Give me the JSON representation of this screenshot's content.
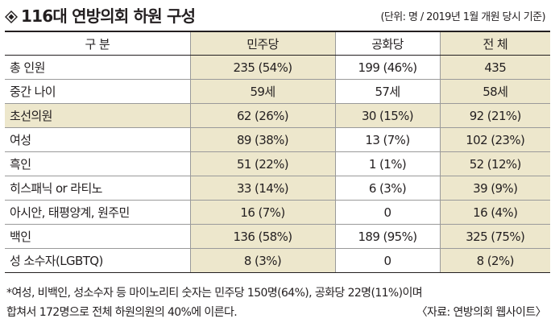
{
  "title": "116대 연방의회  하원 구성",
  "unit_note": "(단위: 명 / 2019년 1월 개원 당시 기준)",
  "table": {
    "headers": [
      "구 분",
      "민주당",
      "공화당",
      "전 체"
    ],
    "rows": [
      {
        "label": "총 인원",
        "dem": "235 (54%)",
        "rep": "199 (46%)",
        "total": "435"
      },
      {
        "label": "중간 나이",
        "dem": "59세",
        "rep": "57세",
        "total": "58세"
      },
      {
        "label": "초선의원",
        "dem": "62 (26%)",
        "rep": "30 (15%)",
        "total": "92 (21%)"
      },
      {
        "label": "여성",
        "dem": "89 (38%)",
        "rep": "13 (7%)",
        "total": "102 (23%)"
      },
      {
        "label": "흑인",
        "dem": "51 (22%)",
        "rep": "1 (1%)",
        "total": "52 (12%)"
      },
      {
        "label": "히스패닉 or 라티노",
        "dem": "33 (14%)",
        "rep": "6 (3%)",
        "total": "39 (9%)"
      },
      {
        "label": "아시안, 태평양계, 원주민",
        "dem": "16 (7%)",
        "rep": "0",
        "total": "16 (4%)"
      },
      {
        "label": "백인",
        "dem": "136 (58%)",
        "rep": "189 (95%)",
        "total": "325 (75%)"
      },
      {
        "label": "성 소수자(LGBTQ)",
        "dem": "8 (3%)",
        "rep": "0",
        "total": "8 (2%)"
      }
    ]
  },
  "footnote": {
    "line1": "*여성, 비백인, 성소수자 등 마이노리티 숫자는 민주당 150명(64%), 공화당 22명(11%)이며",
    "line2": "합쳐서 172명으로 전체 하원의원의 40%에 이른다.",
    "source": "〈자료: 연방의회 웹사이트〉"
  },
  "colors": {
    "beige_shade": "#ede7cc",
    "text": "#231f20",
    "rule": "#9a9a9a"
  }
}
